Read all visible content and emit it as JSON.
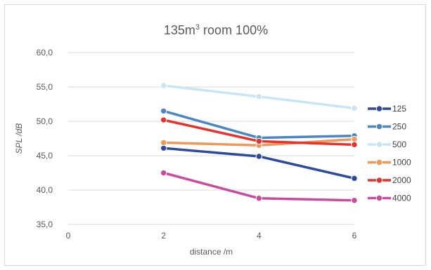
{
  "chart_data": {
    "type": "line",
    "title": "135m",
    "title_sup": "3",
    "title_rest": " room 100%",
    "xlabel": "distance /m",
    "ylabel": "SPL /dB",
    "x": [
      2,
      4,
      6
    ],
    "xlim": [
      0,
      6
    ],
    "x_ticks": [
      "0",
      "2",
      "4",
      "6"
    ],
    "ylim": [
      35,
      60
    ],
    "y_ticks": [
      "35,0",
      "40,0",
      "45,0",
      "50,0",
      "55,0",
      "60,0"
    ],
    "grid": true,
    "legend_position": "right",
    "series": [
      {
        "name": "125",
        "color": "#2e4a9e",
        "values": [
          46.1,
          44.9,
          41.7
        ]
      },
      {
        "name": "250",
        "color": "#4a86c5",
        "values": [
          51.5,
          47.6,
          47.9
        ]
      },
      {
        "name": "500",
        "color": "#c9e4f5",
        "values": [
          55.2,
          53.6,
          51.9
        ]
      },
      {
        "name": "1000",
        "color": "#f0975a",
        "values": [
          46.9,
          46.5,
          47.4
        ]
      },
      {
        "name": "2000",
        "color": "#e8312a",
        "values": [
          50.2,
          47.1,
          46.6
        ]
      },
      {
        "name": "4000",
        "color": "#cc4a9c",
        "values": [
          42.5,
          38.8,
          38.5
        ]
      }
    ]
  }
}
